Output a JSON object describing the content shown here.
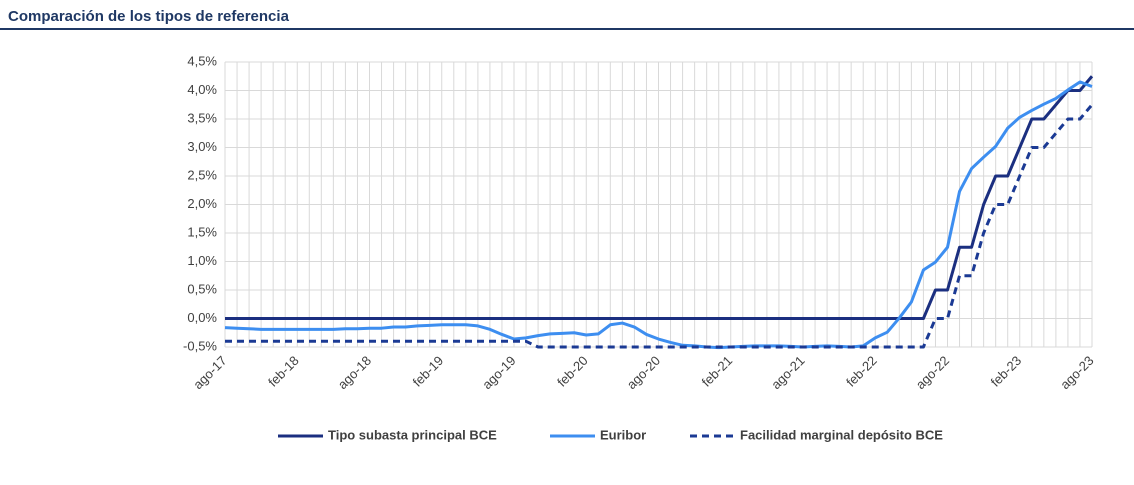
{
  "chart_data": {
    "type": "line",
    "title": "Comparación de los tipos de referencia",
    "categories": [
      "ago-17",
      null,
      null,
      null,
      null,
      null,
      "feb-18",
      null,
      null,
      null,
      null,
      null,
      "ago-18",
      null,
      null,
      null,
      null,
      null,
      "feb-19",
      null,
      null,
      null,
      null,
      null,
      "ago-19",
      null,
      null,
      null,
      null,
      null,
      "feb-20",
      null,
      null,
      null,
      null,
      null,
      "ago-20",
      null,
      null,
      null,
      null,
      null,
      "feb-21",
      null,
      null,
      null,
      null,
      null,
      "ago-21",
      null,
      null,
      null,
      null,
      null,
      "feb-22",
      null,
      null,
      null,
      null,
      null,
      "ago-22",
      null,
      null,
      null,
      null,
      null,
      "feb-23",
      null,
      null,
      null,
      null,
      null,
      "ago-23"
    ],
    "series": [
      {
        "name": "Tipo subasta principal BCE",
        "color": "#1b2f80",
        "dashed": false,
        "values": [
          0,
          0,
          0,
          0,
          0,
          0,
          0,
          0,
          0,
          0,
          0,
          0,
          0,
          0,
          0,
          0,
          0,
          0,
          0,
          0,
          0,
          0,
          0,
          0,
          0,
          0,
          0,
          0,
          0,
          0,
          0,
          0,
          0,
          0,
          0,
          0,
          0,
          0,
          0,
          0,
          0,
          0,
          0,
          0,
          0,
          0,
          0,
          0,
          0,
          0,
          0,
          0,
          0,
          0,
          0,
          0,
          0,
          0,
          0,
          0.5,
          0.5,
          1.25,
          1.25,
          2.0,
          2.5,
          2.5,
          3.0,
          3.5,
          3.5,
          3.75,
          4.0,
          4.0,
          4.25
        ]
      },
      {
        "name": "Euribor",
        "color": "#3d8ef0",
        "dashed": false,
        "values": [
          -0.16,
          -0.17,
          -0.18,
          -0.19,
          -0.19,
          -0.19,
          -0.19,
          -0.19,
          -0.19,
          -0.19,
          -0.18,
          -0.18,
          -0.17,
          -0.17,
          -0.15,
          -0.15,
          -0.13,
          -0.12,
          -0.11,
          -0.11,
          -0.11,
          -0.13,
          -0.19,
          -0.28,
          -0.36,
          -0.34,
          -0.3,
          -0.27,
          -0.26,
          -0.25,
          -0.29,
          -0.27,
          -0.11,
          -0.08,
          -0.15,
          -0.28,
          -0.36,
          -0.42,
          -0.47,
          -0.48,
          -0.5,
          -0.51,
          -0.5,
          -0.49,
          -0.48,
          -0.48,
          -0.48,
          -0.49,
          -0.5,
          -0.49,
          -0.48,
          -0.49,
          -0.5,
          -0.48,
          -0.34,
          -0.24,
          0.01,
          0.29,
          0.85,
          0.99,
          1.25,
          2.23,
          2.63,
          2.83,
          3.02,
          3.34,
          3.53,
          3.65,
          3.76,
          3.86,
          4.01,
          4.15,
          4.07
        ]
      },
      {
        "name": "Facilidad marginal depósito BCE",
        "color": "#1b3a94",
        "dashed": true,
        "values": [
          -0.4,
          -0.4,
          -0.4,
          -0.4,
          -0.4,
          -0.4,
          -0.4,
          -0.4,
          -0.4,
          -0.4,
          -0.4,
          -0.4,
          -0.4,
          -0.4,
          -0.4,
          -0.4,
          -0.4,
          -0.4,
          -0.4,
          -0.4,
          -0.4,
          -0.4,
          -0.4,
          -0.4,
          -0.4,
          -0.4,
          -0.5,
          -0.5,
          -0.5,
          -0.5,
          -0.5,
          -0.5,
          -0.5,
          -0.5,
          -0.5,
          -0.5,
          -0.5,
          -0.5,
          -0.5,
          -0.5,
          -0.5,
          -0.5,
          -0.5,
          -0.5,
          -0.5,
          -0.5,
          -0.5,
          -0.5,
          -0.5,
          -0.5,
          -0.5,
          -0.5,
          -0.5,
          -0.5,
          -0.5,
          -0.5,
          -0.5,
          -0.5,
          -0.5,
          0,
          0,
          0.75,
          0.75,
          1.5,
          2.0,
          2.0,
          2.5,
          3.0,
          3.0,
          3.25,
          3.5,
          3.5,
          3.75
        ]
      }
    ],
    "ylim": [
      -0.5,
      4.5
    ],
    "yticks": [
      {
        "value": -0.5,
        "label": "-0,5%"
      },
      {
        "value": 0,
        "label": "0,0%"
      },
      {
        "value": 0.5,
        "label": "0,5%"
      },
      {
        "value": 1,
        "label": "1,0%"
      },
      {
        "value": 1.5,
        "label": "1,5%"
      },
      {
        "value": 2,
        "label": "2,0%"
      },
      {
        "value": 2.5,
        "label": "2,5%"
      },
      {
        "value": 3,
        "label": "3,0%"
      },
      {
        "value": 3.5,
        "label": "3,5%"
      },
      {
        "value": 4,
        "label": "4,0%"
      },
      {
        "value": 4.5,
        "label": "4,5%"
      }
    ],
    "grid": true,
    "legend": "bottom"
  }
}
